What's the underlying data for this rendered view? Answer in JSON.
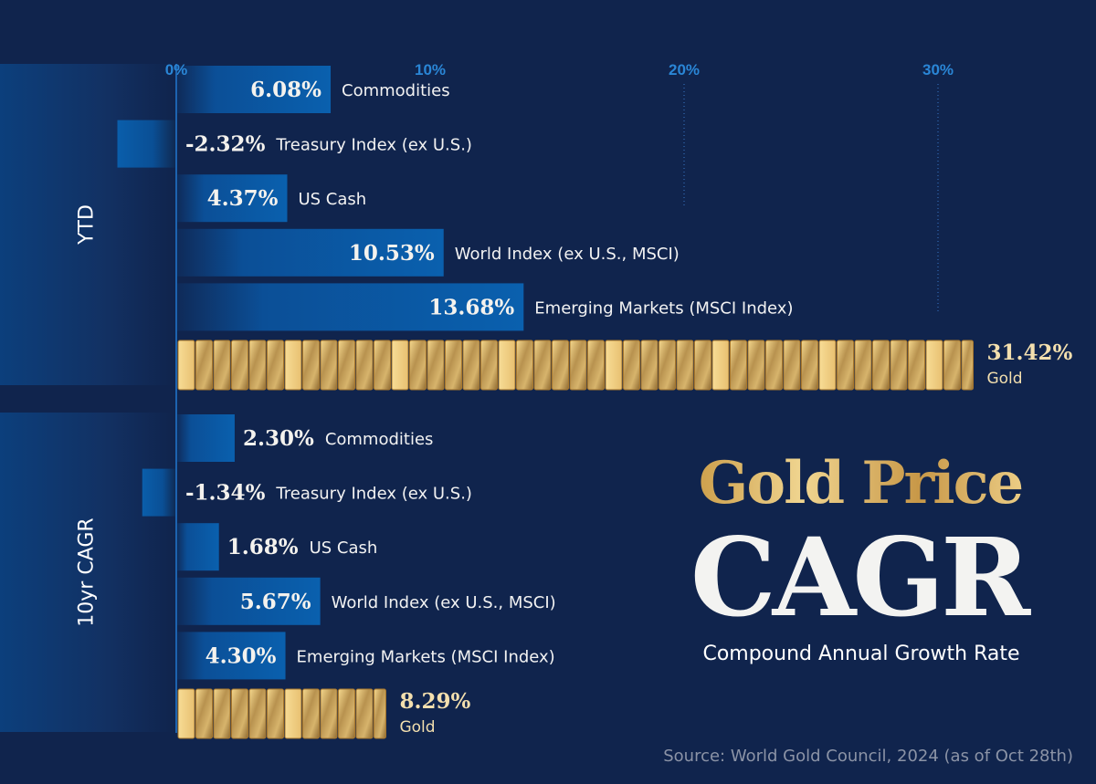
{
  "chart_data": {
    "type": "bar",
    "orientation": "horizontal",
    "title": "Gold Price CAGR",
    "subtitle": "Compound Annual Growth Rate",
    "source": "Source: World Gold Council, 2024 (as of Oct 28th)",
    "xlim": [
      0,
      32
    ],
    "x_ticks": [
      "0%",
      "10%",
      "20%",
      "30%"
    ],
    "tick_values": [
      0,
      10,
      20,
      30
    ],
    "groups": [
      {
        "name": "YTD",
        "items": [
          {
            "label": "Commodities",
            "value": 6.08,
            "text": "6.08%"
          },
          {
            "label": "Treasury Index (ex U.S.)",
            "value": -2.32,
            "text": "-2.32%"
          },
          {
            "label": "US Cash",
            "value": 4.37,
            "text": "4.37%"
          },
          {
            "label": "World Index (ex U.S., MSCI)",
            "value": 10.53,
            "text": "10.53%"
          },
          {
            "label": "Emerging Markets (MSCI Index)",
            "value": 13.68,
            "text": "13.68%"
          },
          {
            "label": "Gold",
            "value": 31.42,
            "text": "31.42%",
            "gold": true
          }
        ]
      },
      {
        "name": "10yr CAGR",
        "items": [
          {
            "label": "Commodities",
            "value": 2.3,
            "text": "2.30%"
          },
          {
            "label": "Treasury Index (ex U.S.)",
            "value": -1.34,
            "text": "-1.34%"
          },
          {
            "label": "US Cash",
            "value": 1.68,
            "text": "1.68%"
          },
          {
            "label": "World Index (ex U.S., MSCI)",
            "value": 5.67,
            "text": "5.67%"
          },
          {
            "label": "Emerging Markets (MSCI Index)",
            "value": 4.3,
            "text": "4.30%"
          },
          {
            "label": "Gold",
            "value": 8.29,
            "text": "8.29%",
            "gold": true
          }
        ]
      }
    ]
  },
  "title": {
    "line1": "Gold Price",
    "line2": "CAGR",
    "subtitle": "Compound Annual Growth Rate"
  },
  "source": "Source: World Gold Council, 2024 (as of Oct 28th)",
  "colors": {
    "background": "#10244d",
    "bar": "#0a5eab",
    "tick": "#2a86d6",
    "gold": "#e0b868"
  }
}
